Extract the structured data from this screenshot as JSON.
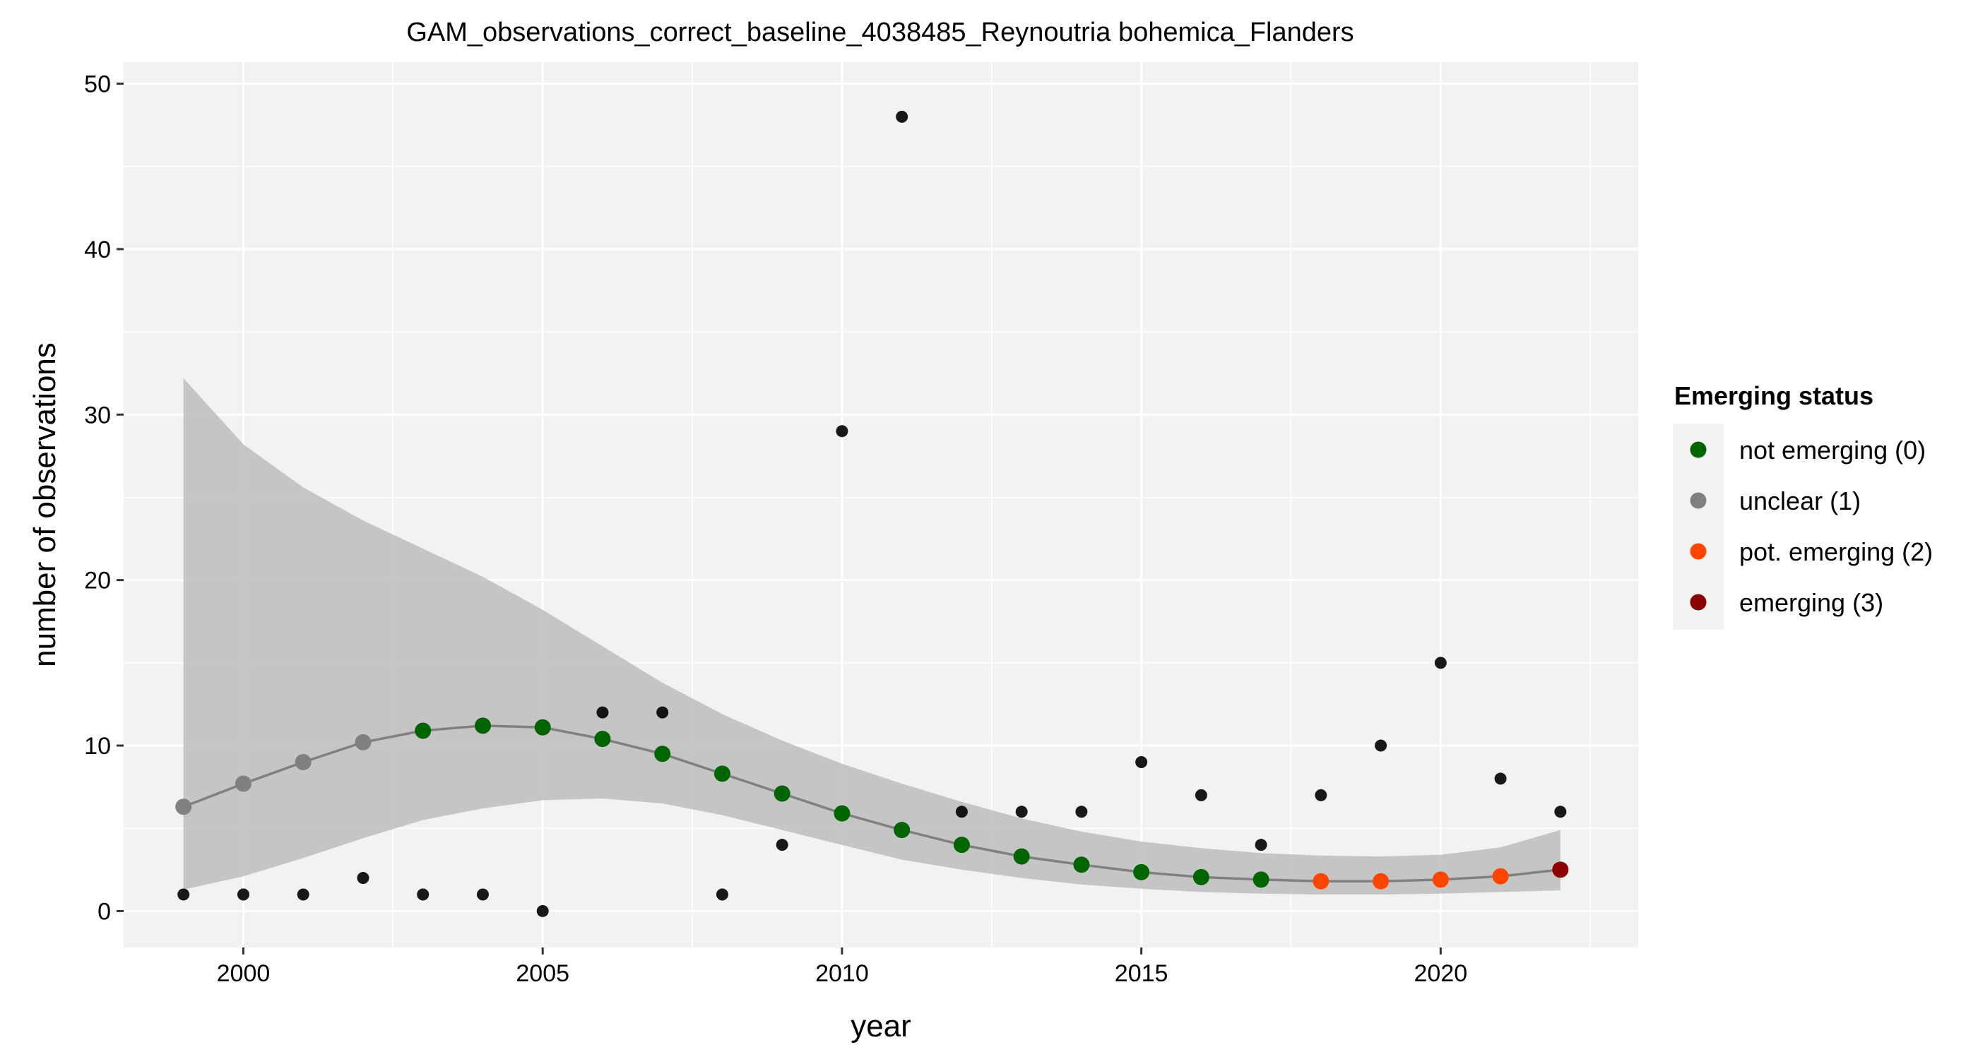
{
  "chart_data": {
    "type": "scatter",
    "title": "GAM_observations_correct_baseline_4038485_Reynoutria bohemica_Flanders",
    "xlabel": "year",
    "ylabel": "number of observations",
    "xlim": [
      1998,
      2023.3
    ],
    "ylim": [
      -2.2,
      51.3
    ],
    "x_ticks": [
      2000,
      2005,
      2010,
      2015,
      2020
    ],
    "y_ticks": [
      0,
      10,
      20,
      30,
      40,
      50
    ],
    "grid": true,
    "legend": {
      "title": "Emerging status",
      "placement": "right",
      "items": [
        {
          "label": "not emerging (0)",
          "color": "#006400"
        },
        {
          "label": "unclear (1)",
          "color": "#808080"
        },
        {
          "label": "pot. emerging (2)",
          "color": "#FF4500"
        },
        {
          "label": "emerging (3)",
          "color": "#8B0000"
        }
      ]
    },
    "observations": {
      "x": [
        1999,
        2000,
        2001,
        2002,
        2003,
        2004,
        2005,
        2006,
        2007,
        2008,
        2009,
        2010,
        2011,
        2012,
        2013,
        2014,
        2015,
        2016,
        2017,
        2018,
        2019,
        2020,
        2021,
        2022
      ],
      "y": [
        1,
        1,
        1,
        2,
        1,
        1,
        0,
        12,
        12,
        1,
        4,
        29,
        48,
        6,
        6,
        6,
        9,
        7,
        4,
        7,
        10,
        15,
        8,
        6
      ]
    },
    "fit": {
      "x": [
        1999,
        2000,
        2001,
        2002,
        2003,
        2004,
        2005,
        2006,
        2007,
        2008,
        2009,
        2010,
        2011,
        2012,
        2013,
        2014,
        2015,
        2016,
        2017,
        2018,
        2019,
        2020,
        2021,
        2022
      ],
      "y": [
        6.3,
        7.7,
        9.0,
        10.2,
        10.9,
        11.2,
        11.1,
        10.4,
        9.5,
        8.3,
        7.1,
        5.9,
        4.9,
        4.0,
        3.3,
        2.8,
        2.35,
        2.05,
        1.9,
        1.8,
        1.8,
        1.9,
        2.1,
        2.5
      ],
      "lower": [
        1.3,
        2.1,
        3.2,
        4.4,
        5.5,
        6.2,
        6.7,
        6.8,
        6.5,
        5.8,
        4.9,
        4.0,
        3.1,
        2.5,
        2.0,
        1.6,
        1.35,
        1.15,
        1.05,
        1.0,
        1.0,
        1.05,
        1.15,
        1.25
      ],
      "upper": [
        32.2,
        28.2,
        25.6,
        23.6,
        21.9,
        20.2,
        18.2,
        16.0,
        13.8,
        11.9,
        10.3,
        8.9,
        7.7,
        6.6,
        5.6,
        4.8,
        4.2,
        3.8,
        3.5,
        3.35,
        3.3,
        3.4,
        3.85,
        4.9
      ],
      "status": [
        1,
        1,
        1,
        1,
        0,
        0,
        0,
        0,
        0,
        0,
        0,
        0,
        0,
        0,
        0,
        0,
        0,
        0,
        0,
        2,
        2,
        2,
        2,
        3
      ]
    }
  }
}
